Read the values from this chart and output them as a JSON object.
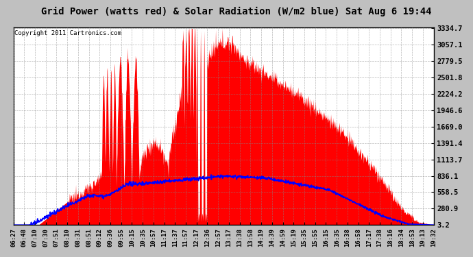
{
  "title": "Grid Power (watts red) & Solar Radiation (W/m2 blue) Sat Aug 6 19:44",
  "copyright": "Copyright 2011 Cartronics.com",
  "yticks": [
    3.2,
    280.9,
    558.5,
    836.1,
    1113.7,
    1391.4,
    1669.0,
    1946.6,
    2224.2,
    2501.8,
    2779.5,
    3057.1,
    3334.7
  ],
  "xtick_labels": [
    "06:27",
    "06:48",
    "07:10",
    "07:30",
    "07:51",
    "08:10",
    "08:31",
    "08:51",
    "09:12",
    "09:36",
    "09:55",
    "10:15",
    "10:35",
    "10:57",
    "11:17",
    "11:37",
    "11:57",
    "12:17",
    "12:36",
    "12:57",
    "13:17",
    "13:38",
    "13:58",
    "14:19",
    "14:39",
    "14:59",
    "15:19",
    "15:35",
    "15:55",
    "16:15",
    "16:35",
    "16:38",
    "16:58",
    "17:17",
    "17:38",
    "18:16",
    "18:34",
    "18:53",
    "19:13",
    "19:32"
  ],
  "ymin": 3.2,
  "ymax": 3334.7,
  "red_color": "#ff0000",
  "blue_color": "#0000ff",
  "grid_color": "#888888",
  "bg_color": "#ffffff",
  "fig_bg_color": "#c0c0c0"
}
